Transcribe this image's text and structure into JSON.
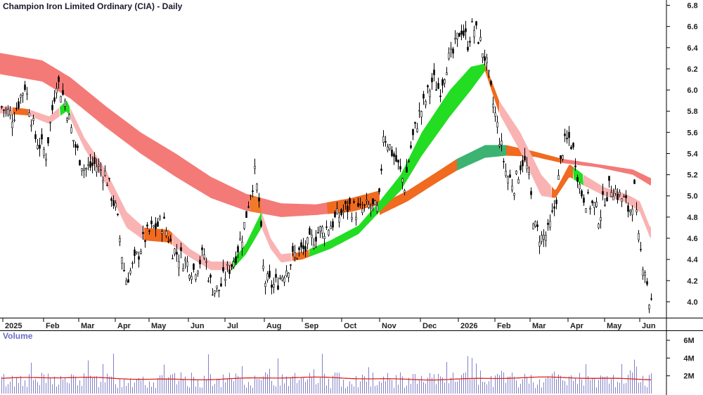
{
  "chart_data": [
    {
      "type": "candlestick",
      "title": "Champion Iron Limited Ordinary (CIA) - Daily",
      "ylim": [
        3.85,
        6.85
      ],
      "y_ticks": [
        "6.8",
        "6.6",
        "6.4",
        "6.2",
        "6.0",
        "5.8",
        "5.6",
        "5.4",
        "5.2",
        "5.0",
        "4.8",
        "4.6",
        "4.4",
        "4.2",
        "4.0"
      ],
      "x_labels": [
        "2025",
        "Feb",
        "Mar",
        "Apr",
        "May",
        "Jun",
        "Jul",
        "Aug",
        "Sep",
        "Oct",
        "Nov",
        "Dec",
        "2026",
        "Feb",
        "Mar",
        "Apr",
        "May",
        "Jun"
      ],
      "legend": "none",
      "grid": false,
      "price_path": [
        [
          0,
          5.85
        ],
        [
          18,
          5.75
        ],
        [
          35,
          6.05
        ],
        [
          50,
          5.55
        ],
        [
          65,
          5.4
        ],
        [
          80,
          6.1
        ],
        [
          92,
          5.9
        ],
        [
          105,
          5.5
        ],
        [
          120,
          5.25
        ],
        [
          135,
          5.3
        ],
        [
          150,
          5.2
        ],
        [
          165,
          4.85
        ],
        [
          178,
          4.2
        ],
        [
          190,
          4.35
        ],
        [
          205,
          4.6
        ],
        [
          218,
          4.7
        ],
        [
          232,
          4.75
        ],
        [
          245,
          4.5
        ],
        [
          260,
          4.4
        ],
        [
          275,
          4.3
        ],
        [
          290,
          4.45
        ],
        [
          300,
          4.15
        ],
        [
          310,
          4.1
        ],
        [
          320,
          4.25
        ],
        [
          332,
          4.4
        ],
        [
          345,
          4.65
        ],
        [
          356,
          5.05
        ],
        [
          362,
          5.2
        ],
        [
          368,
          4.95
        ],
        [
          375,
          4.2
        ],
        [
          390,
          4.15
        ],
        [
          405,
          4.3
        ],
        [
          420,
          4.45
        ],
        [
          435,
          4.5
        ],
        [
          450,
          4.65
        ],
        [
          465,
          4.7
        ],
        [
          480,
          4.8
        ],
        [
          495,
          4.9
        ],
        [
          510,
          4.85
        ],
        [
          525,
          4.9
        ],
        [
          538,
          4.85
        ],
        [
          545,
          5.6
        ],
        [
          555,
          5.45
        ],
        [
          565,
          5.3
        ],
        [
          575,
          5.1
        ],
        [
          585,
          5.5
        ],
        [
          595,
          5.75
        ],
        [
          605,
          5.9
        ],
        [
          615,
          6.1
        ],
        [
          625,
          6.0
        ],
        [
          635,
          6.25
        ],
        [
          645,
          6.35
        ],
        [
          655,
          6.6
        ],
        [
          665,
          6.45
        ],
        [
          672,
          6.6
        ],
        [
          680,
          6.5
        ],
        [
          690,
          6.3
        ],
        [
          700,
          5.9
        ],
        [
          710,
          5.55
        ],
        [
          720,
          5.2
        ],
        [
          732,
          5.1
        ],
        [
          742,
          5.35
        ],
        [
          750,
          5.25
        ],
        [
          760,
          4.7
        ],
        [
          770,
          4.6
        ],
        [
          780,
          4.65
        ],
        [
          790,
          4.95
        ],
        [
          800,
          5.45
        ],
        [
          810,
          5.55
        ],
        [
          818,
          5.35
        ],
        [
          825,
          5.05
        ],
        [
          835,
          4.95
        ],
        [
          845,
          4.9
        ],
        [
          852,
          4.8
        ],
        [
          860,
          5.0
        ],
        [
          870,
          5.1
        ],
        [
          880,
          5.0
        ],
        [
          888,
          4.95
        ],
        [
          895,
          4.85
        ],
        [
          902,
          5.05
        ],
        [
          907,
          4.6
        ],
        [
          913,
          4.4
        ],
        [
          918,
          4.3
        ],
        [
          923,
          4.0
        ]
      ],
      "bands": [
        {
          "name": "long-term-upper",
          "color": "#f26b6b",
          "points": [
            [
              0,
              6.35
            ],
            [
              60,
              6.28
            ],
            [
              100,
              6.12
            ],
            [
              150,
              5.85
            ],
            [
              200,
              5.6
            ],
            [
              250,
              5.4
            ],
            [
              300,
              5.18
            ],
            [
              350,
              5.02
            ],
            [
              400,
              4.93
            ],
            [
              450,
              4.92
            ],
            [
              500,
              4.98
            ],
            [
              540,
              5.05
            ]
          ]
        },
        {
          "name": "long-term-lower",
          "color": "#f26b6b",
          "points": [
            [
              0,
              6.15
            ],
            [
              60,
              6.08
            ],
            [
              100,
              5.92
            ],
            [
              150,
              5.65
            ],
            [
              200,
              5.4
            ],
            [
              250,
              5.18
            ],
            [
              300,
              4.98
            ],
            [
              350,
              4.86
            ],
            [
              400,
              4.8
            ],
            [
              450,
              4.82
            ],
            [
              500,
              4.85
            ],
            [
              540,
              4.92
            ]
          ]
        },
        {
          "name": "long-term-2026-upper",
          "points": [
            [
              540,
              4.92
            ],
            [
              580,
              5.05
            ],
            [
              620,
              5.22
            ],
            [
              650,
              5.35
            ],
            [
              690,
              5.48
            ],
            [
              720,
              5.48
            ],
            [
              760,
              5.42
            ],
            [
              800,
              5.35
            ],
            [
              850,
              5.3
            ],
            [
              900,
              5.25
            ],
            [
              925,
              5.17
            ]
          ]
        },
        {
          "name": "long-term-2026-lower",
          "points": [
            [
              540,
              4.82
            ],
            [
              580,
              4.95
            ],
            [
              620,
              5.12
            ],
            [
              650,
              5.24
            ],
            [
              690,
              5.36
            ],
            [
              720,
              5.38
            ],
            [
              760,
              5.37
            ],
            [
              800,
              5.31
            ],
            [
              850,
              5.27
            ],
            [
              900,
              5.2
            ],
            [
              925,
              5.1
            ]
          ]
        },
        {
          "name": "short-term-upper",
          "points": [
            [
              0,
              5.85
            ],
            [
              40,
              5.82
            ],
            [
              70,
              5.75
            ],
            [
              95,
              5.9
            ],
            [
              120,
              5.55
            ],
            [
              150,
              5.25
            ],
            [
              180,
              4.85
            ],
            [
              205,
              4.7
            ],
            [
              240,
              4.68
            ],
            [
              270,
              4.5
            ],
            [
              300,
              4.38
            ],
            [
              330,
              4.38
            ],
            [
              350,
              4.55
            ],
            [
              372,
              4.85
            ],
            [
              385,
              4.6
            ],
            [
              400,
              4.45
            ],
            [
              430,
              4.47
            ],
            [
              470,
              4.58
            ],
            [
              510,
              4.72
            ],
            [
              540,
              4.95
            ],
            [
              570,
              5.2
            ],
            [
              600,
              5.6
            ],
            [
              640,
              6.0
            ],
            [
              670,
              6.22
            ],
            [
              690,
              6.25
            ],
            [
              710,
              5.9
            ],
            [
              740,
              5.6
            ],
            [
              770,
              5.2
            ],
            [
              790,
              5.05
            ],
            [
              810,
              5.3
            ],
            [
              830,
              5.2
            ],
            [
              860,
              5.08
            ],
            [
              890,
              5.02
            ],
            [
              910,
              4.95
            ],
            [
              925,
              4.7
            ]
          ]
        },
        {
          "name": "short-term-lower",
          "points": [
            [
              0,
              5.78
            ],
            [
              40,
              5.76
            ],
            [
              70,
              5.68
            ],
            [
              95,
              5.8
            ],
            [
              120,
              5.45
            ],
            [
              150,
              5.12
            ],
            [
              180,
              4.7
            ],
            [
              205,
              4.58
            ],
            [
              240,
              4.56
            ],
            [
              270,
              4.42
            ],
            [
              300,
              4.3
            ],
            [
              330,
              4.3
            ],
            [
              350,
              4.45
            ],
            [
              372,
              4.7
            ],
            [
              385,
              4.5
            ],
            [
              400,
              4.37
            ],
            [
              430,
              4.4
            ],
            [
              470,
              4.5
            ],
            [
              510,
              4.64
            ],
            [
              540,
              4.85
            ],
            [
              570,
              5.05
            ],
            [
              600,
              5.38
            ],
            [
              640,
              5.75
            ],
            [
              670,
              6.0
            ],
            [
              690,
              6.18
            ],
            [
              710,
              5.78
            ],
            [
              740,
              5.42
            ],
            [
              770,
              5.0
            ],
            [
              790,
              4.98
            ],
            [
              810,
              5.18
            ],
            [
              830,
              5.1
            ],
            [
              860,
              5.0
            ],
            [
              890,
              4.94
            ],
            [
              910,
              4.85
            ],
            [
              925,
              4.6
            ]
          ]
        }
      ]
    },
    {
      "type": "bar",
      "title": "Volume",
      "y_ticks": [
        "6M",
        "4M",
        "2M"
      ],
      "ylim": [
        0,
        6.8
      ],
      "unit": "M",
      "moving_average_color": "#e0201b",
      "bar_color": "#8080c8",
      "moving_average_level": 1.7
    }
  ]
}
